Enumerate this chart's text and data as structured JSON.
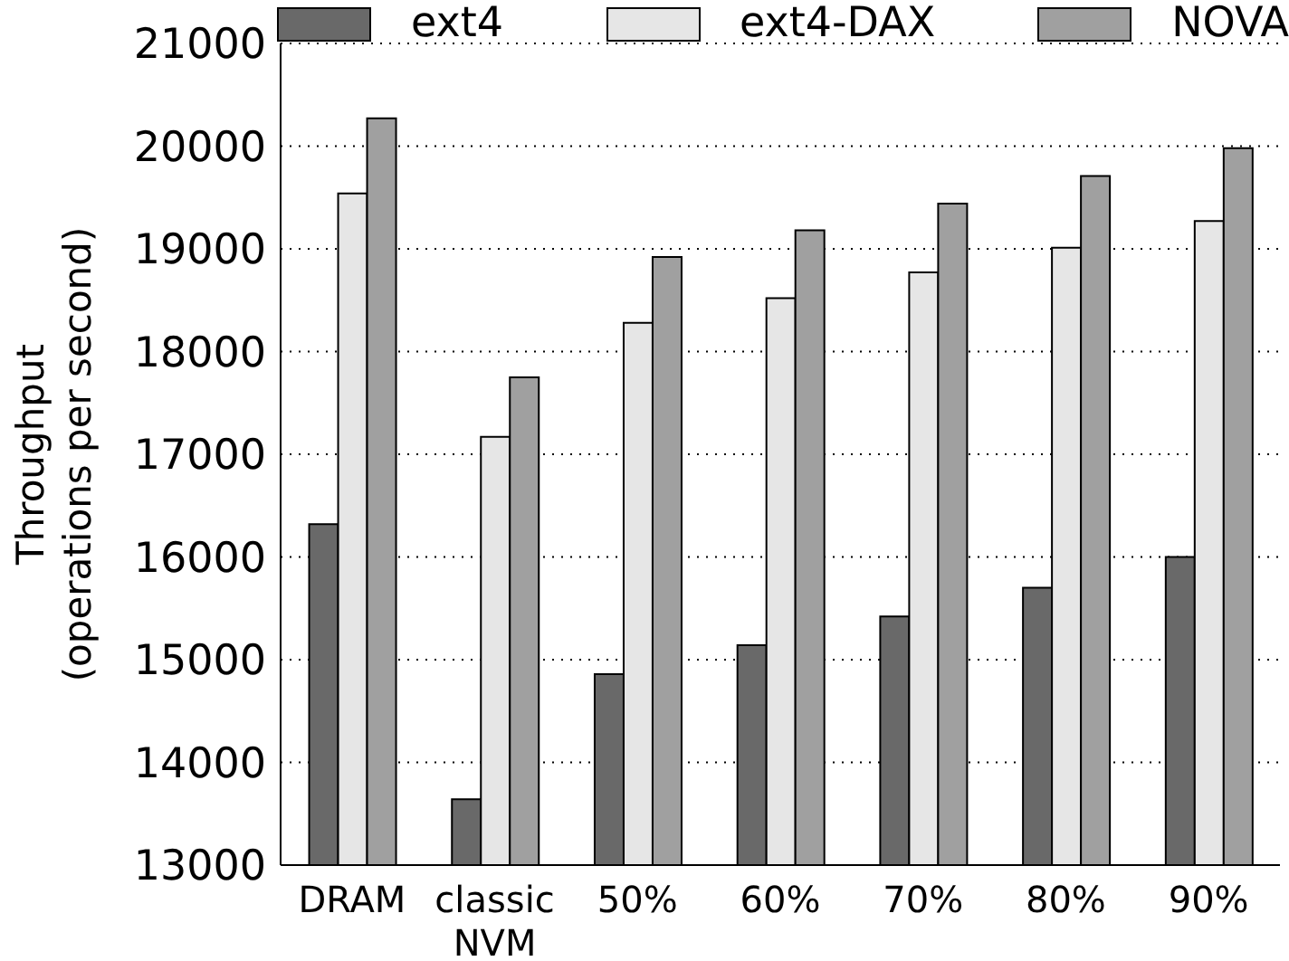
{
  "chart_data": {
    "type": "bar",
    "ylabel": "Throughput\n(operations per second)",
    "categories": [
      "DRAM",
      "classic NVM",
      "50%",
      "60%",
      "70%",
      "80%",
      "90%"
    ],
    "series": [
      {
        "name": "ext4",
        "color": "#696969",
        "values": [
          16320,
          13640,
          14860,
          15140,
          15420,
          15700,
          16000
        ]
      },
      {
        "name": "ext4-DAX",
        "color": "#e6e6e6",
        "values": [
          19540,
          17170,
          18280,
          18520,
          18770,
          19010,
          19270
        ]
      },
      {
        "name": "NOVA",
        "color": "#a0a0a0",
        "values": [
          20270,
          17750,
          18920,
          19180,
          19440,
          19710,
          19980
        ]
      }
    ],
    "ylim": [
      13000,
      21000
    ],
    "yticks": [
      13000,
      14000,
      15000,
      16000,
      17000,
      18000,
      19000,
      20000,
      21000
    ],
    "grid": "y",
    "legend": "top"
  }
}
